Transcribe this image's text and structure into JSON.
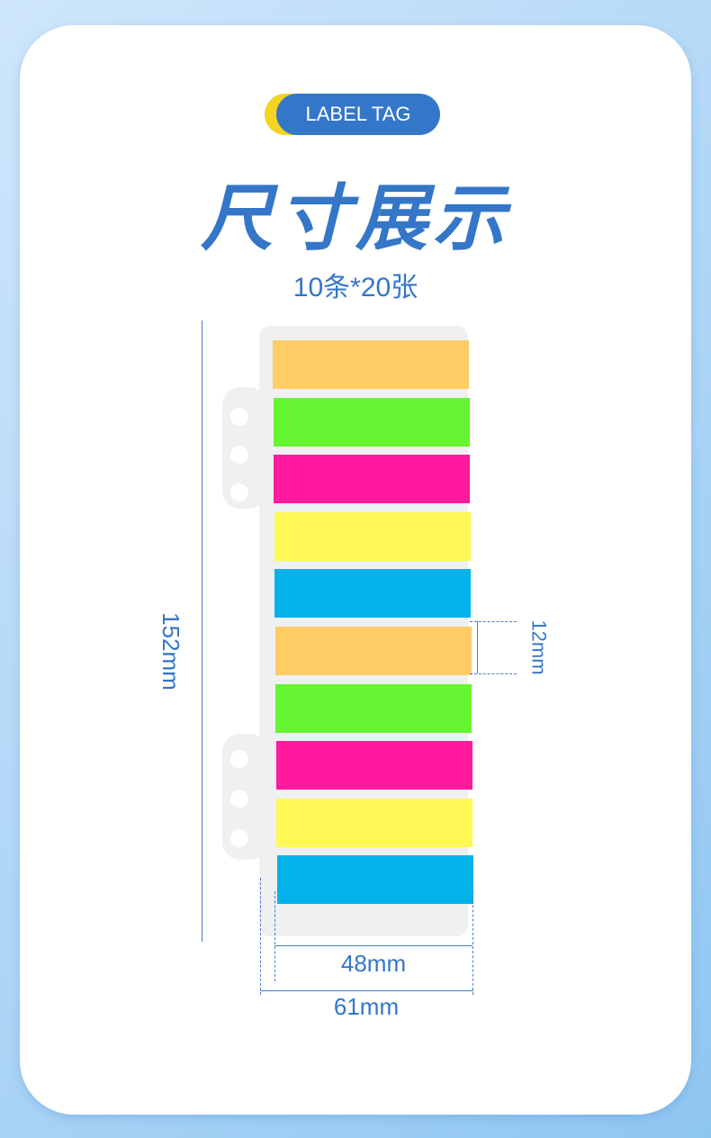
{
  "badge": {
    "label": "LABEL TAG"
  },
  "title": "尺寸展示",
  "subtitle": "10条*20张",
  "tab_colors": [
    "#ffcc66",
    "#66f533",
    "#ff1a9e",
    "#fff855",
    "#04b3ea",
    "#ffcc66",
    "#66f533",
    "#ff1a9e",
    "#fff855",
    "#04b3ea"
  ],
  "dimensions": {
    "height": "152mm",
    "tab_height": "12mm",
    "tab_width": "48mm",
    "total_width": "61mm"
  }
}
